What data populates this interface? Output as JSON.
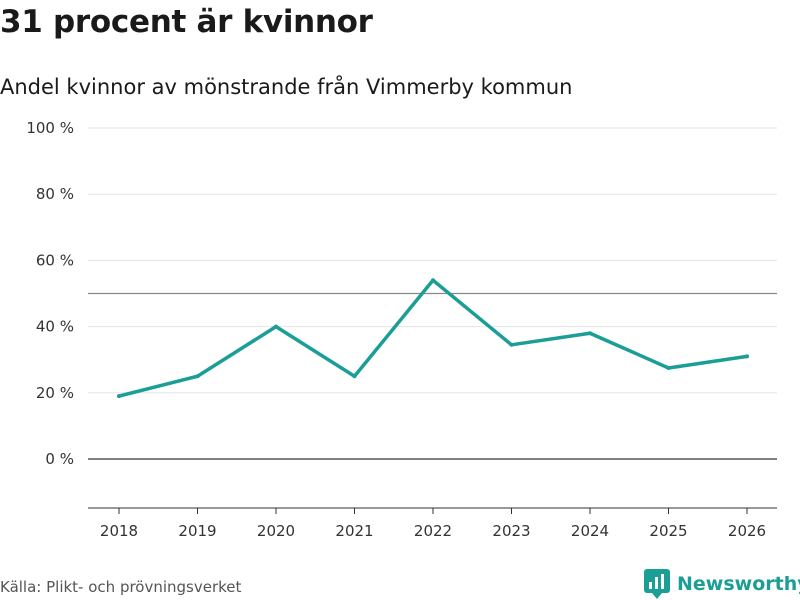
{
  "title": "31 procent är kvinnor",
  "subtitle": "Andel kvinnor av mönstrande från Vimmerby kommun",
  "source": "Källa: Plikt- och prövningsverket",
  "brand": {
    "name": "Newsworthy",
    "icon": "newsworthy-logo-icon",
    "color": "#1a9e95"
  },
  "colors": {
    "line": "#1a9e95",
    "grid": "#e5e5e5",
    "zero": "#555555",
    "reference": "#888888"
  },
  "chart_data": {
    "type": "line",
    "title": "31 procent är kvinnor",
    "subtitle": "Andel kvinnor av mönstrande från Vimmerby kommun",
    "x": [
      2018,
      2019,
      2020,
      2021,
      2022,
      2023,
      2024,
      2025,
      2026
    ],
    "series": [
      {
        "name": "Andel kvinnor",
        "values": [
          19,
          25,
          40,
          25,
          54,
          34.5,
          38,
          27.5,
          31
        ]
      }
    ],
    "ylim": [
      -15,
      100
    ],
    "yticks": [
      0,
      20,
      40,
      60,
      80,
      100
    ],
    "ytick_labels": [
      "0 %",
      "20 %",
      "40 %",
      "60 %",
      "80 %",
      "100 %"
    ],
    "xtick_labels": [
      "2018",
      "2019",
      "2020",
      "2021",
      "2022",
      "2023",
      "2024",
      "2025",
      "2026"
    ],
    "reference_line": 50,
    "grid": true,
    "xlabel": "",
    "ylabel": ""
  }
}
